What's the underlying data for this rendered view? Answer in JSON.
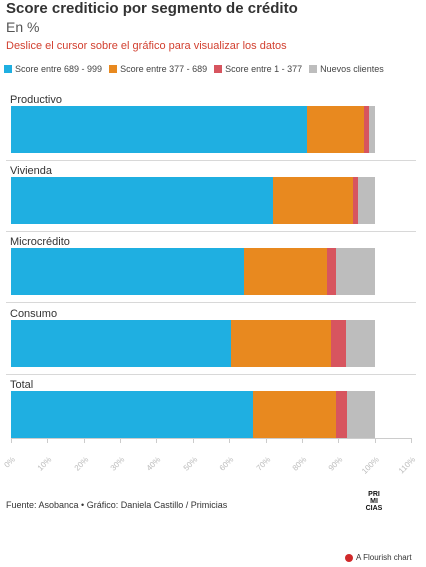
{
  "title": "Score crediticio por segmento de crédito",
  "subtitle": "En %",
  "note": "Deslice el cursor sobre el gráfico para visualizar los datos",
  "source": "Fuente: Asobanca • Gráfico: Daniela Castillo / Primicias",
  "logo": {
    "lines": [
      "PRI",
      "MI",
      "CIAS"
    ]
  },
  "flourish_label": "A Flourish chart",
  "chart_data": {
    "type": "bar",
    "orientation": "horizontal",
    "stacked": true,
    "categories": [
      "Productivo",
      "Vivienda",
      "Microcrédito",
      "Consumo",
      "Total"
    ],
    "series": [
      {
        "name": "Score entre 689 - 999",
        "color": "#1fafe1",
        "values": [
          81.5,
          72.0,
          64.0,
          60.5,
          66.5
        ]
      },
      {
        "name": "Score entre 377 - 689",
        "color": "#e8891f",
        "values": [
          15.5,
          22.0,
          23.0,
          27.5,
          23.0
        ]
      },
      {
        "name": "Score entre 1 - 377",
        "color": "#d7555f",
        "values": [
          1.5,
          1.5,
          2.5,
          4.0,
          3.0
        ]
      },
      {
        "name": "Nuevos clientes",
        "color": "#bdbdbd",
        "values": [
          1.5,
          4.5,
          10.5,
          8.0,
          7.5
        ]
      }
    ],
    "xlim": [
      0,
      110
    ],
    "xticks": [
      "0%",
      "10%",
      "20%",
      "30%",
      "40%",
      "50%",
      "60%",
      "70%",
      "80%",
      "90%",
      "100%",
      "110%"
    ],
    "legend_position": "top-left",
    "grid": false
  }
}
